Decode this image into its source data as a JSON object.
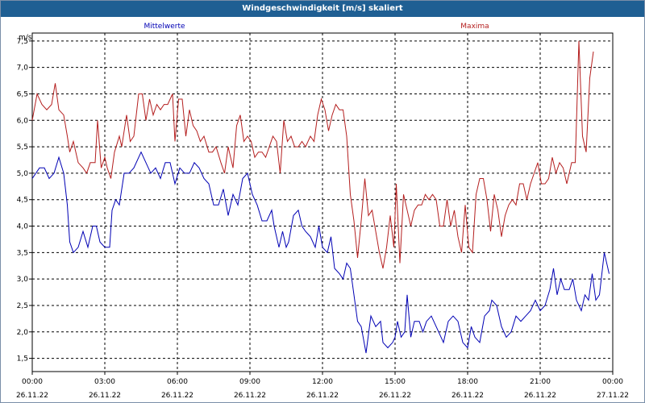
{
  "window": {
    "title": "Windgeschwindigkeit [m/s] skaliert"
  },
  "chart_data": {
    "type": "line",
    "unit": "m/s",
    "ylim": [
      1.25,
      7.65
    ],
    "yticks": [
      "1,5",
      "2,0",
      "2,5",
      "3,0",
      "3,5",
      "4,0",
      "4,5",
      "5,0",
      "5,5",
      "6,0",
      "6,5",
      "7,0",
      "7,5"
    ],
    "ytick_values": [
      1.5,
      2.0,
      2.5,
      3.0,
      3.5,
      4.0,
      4.5,
      5.0,
      5.5,
      6.0,
      6.5,
      7.0,
      7.5
    ],
    "xlim": [
      0,
      24
    ],
    "xticks": [
      {
        "time": "00:00",
        "date": "26.11.22",
        "hour": 0
      },
      {
        "time": "03:00",
        "date": "26.11.22",
        "hour": 3
      },
      {
        "time": "06:00",
        "date": "26.11.22",
        "hour": 6
      },
      {
        "time": "09:00",
        "date": "26.11.22",
        "hour": 9
      },
      {
        "time": "12:00",
        "date": "26.11.22",
        "hour": 12
      },
      {
        "time": "15:00",
        "date": "26.11.22",
        "hour": 15
      },
      {
        "time": "18:00",
        "date": "26.11.22",
        "hour": 18
      },
      {
        "time": "21:00",
        "date": "26.11.22",
        "hour": 21
      },
      {
        "time": "00:00",
        "date": "27.11.22",
        "hour": 24
      }
    ],
    "grid": true,
    "legend_placement": "top",
    "series": [
      {
        "name": "Mittelwerte",
        "color": "#0000b4",
        "points": [
          [
            0.0,
            4.9
          ],
          [
            0.3,
            5.1
          ],
          [
            0.5,
            5.1
          ],
          [
            0.7,
            4.9
          ],
          [
            0.9,
            5.0
          ],
          [
            1.1,
            5.3
          ],
          [
            1.3,
            5.0
          ],
          [
            1.45,
            4.4
          ],
          [
            1.55,
            3.7
          ],
          [
            1.7,
            3.5
          ],
          [
            1.9,
            3.6
          ],
          [
            2.1,
            3.9
          ],
          [
            2.3,
            3.6
          ],
          [
            2.5,
            4.0
          ],
          [
            2.65,
            4.0
          ],
          [
            2.8,
            3.7
          ],
          [
            3.0,
            3.6
          ],
          [
            3.2,
            3.6
          ],
          [
            3.3,
            4.3
          ],
          [
            3.45,
            4.5
          ],
          [
            3.6,
            4.4
          ],
          [
            3.8,
            5.0
          ],
          [
            4.0,
            5.0
          ],
          [
            4.2,
            5.1
          ],
          [
            4.5,
            5.4
          ],
          [
            4.7,
            5.2
          ],
          [
            4.9,
            5.0
          ],
          [
            5.1,
            5.1
          ],
          [
            5.3,
            4.9
          ],
          [
            5.5,
            5.2
          ],
          [
            5.7,
            5.2
          ],
          [
            5.9,
            4.8
          ],
          [
            6.1,
            5.1
          ],
          [
            6.3,
            5.0
          ],
          [
            6.5,
            5.0
          ],
          [
            6.7,
            5.2
          ],
          [
            6.9,
            5.1
          ],
          [
            7.1,
            4.9
          ],
          [
            7.3,
            4.8
          ],
          [
            7.5,
            4.4
          ],
          [
            7.7,
            4.4
          ],
          [
            7.9,
            4.7
          ],
          [
            8.1,
            4.2
          ],
          [
            8.3,
            4.6
          ],
          [
            8.5,
            4.4
          ],
          [
            8.7,
            4.9
          ],
          [
            8.9,
            5.0
          ],
          [
            9.1,
            4.6
          ],
          [
            9.3,
            4.4
          ],
          [
            9.5,
            4.1
          ],
          [
            9.7,
            4.1
          ],
          [
            9.9,
            4.3
          ],
          [
            10.0,
            4.0
          ],
          [
            10.2,
            3.6
          ],
          [
            10.35,
            3.9
          ],
          [
            10.5,
            3.6
          ],
          [
            10.6,
            3.7
          ],
          [
            10.8,
            4.2
          ],
          [
            11.0,
            4.3
          ],
          [
            11.15,
            4.0
          ],
          [
            11.3,
            3.9
          ],
          [
            11.5,
            3.8
          ],
          [
            11.7,
            3.6
          ],
          [
            11.85,
            4.0
          ],
          [
            12.0,
            3.6
          ],
          [
            12.2,
            3.5
          ],
          [
            12.35,
            3.8
          ],
          [
            12.5,
            3.2
          ],
          [
            12.7,
            3.1
          ],
          [
            12.85,
            3.0
          ],
          [
            13.0,
            3.3
          ],
          [
            13.15,
            3.2
          ],
          [
            13.3,
            2.7
          ],
          [
            13.45,
            2.2
          ],
          [
            13.6,
            2.1
          ],
          [
            13.8,
            1.6
          ],
          [
            14.0,
            2.3
          ],
          [
            14.2,
            2.1
          ],
          [
            14.4,
            2.2
          ],
          [
            14.5,
            1.8
          ],
          [
            14.7,
            1.7
          ],
          [
            14.9,
            1.8
          ],
          [
            15.0,
            1.9
          ],
          [
            15.1,
            2.2
          ],
          [
            15.25,
            1.9
          ],
          [
            15.4,
            2.0
          ],
          [
            15.5,
            2.7
          ],
          [
            15.65,
            1.9
          ],
          [
            15.8,
            2.2
          ],
          [
            16.0,
            2.2
          ],
          [
            16.15,
            2.0
          ],
          [
            16.3,
            2.2
          ],
          [
            16.5,
            2.3
          ],
          [
            16.7,
            2.1
          ],
          [
            16.9,
            1.9
          ],
          [
            17.0,
            1.8
          ],
          [
            17.2,
            2.2
          ],
          [
            17.4,
            2.3
          ],
          [
            17.6,
            2.2
          ],
          [
            17.8,
            1.8
          ],
          [
            18.0,
            1.7
          ],
          [
            18.15,
            2.1
          ],
          [
            18.3,
            1.9
          ],
          [
            18.5,
            1.8
          ],
          [
            18.7,
            2.3
          ],
          [
            18.9,
            2.4
          ],
          [
            19.0,
            2.6
          ],
          [
            19.2,
            2.5
          ],
          [
            19.4,
            2.1
          ],
          [
            19.6,
            1.9
          ],
          [
            19.8,
            2.0
          ],
          [
            20.0,
            2.3
          ],
          [
            20.2,
            2.2
          ],
          [
            20.4,
            2.3
          ],
          [
            20.6,
            2.4
          ],
          [
            20.8,
            2.6
          ],
          [
            21.0,
            2.4
          ],
          [
            21.2,
            2.5
          ],
          [
            21.4,
            2.8
          ],
          [
            21.55,
            3.2
          ],
          [
            21.7,
            2.7
          ],
          [
            21.85,
            3.0
          ],
          [
            22.0,
            2.8
          ],
          [
            22.2,
            2.8
          ],
          [
            22.35,
            3.0
          ],
          [
            22.5,
            2.6
          ],
          [
            22.7,
            2.4
          ],
          [
            22.85,
            2.7
          ],
          [
            23.0,
            2.6
          ],
          [
            23.15,
            3.1
          ],
          [
            23.3,
            2.6
          ],
          [
            23.45,
            2.7
          ],
          [
            23.65,
            3.5
          ],
          [
            23.85,
            3.1
          ]
        ]
      },
      {
        "name": "Maxima",
        "color": "#b41e1e",
        "points": [
          [
            0.0,
            6.0
          ],
          [
            0.2,
            6.5
          ],
          [
            0.4,
            6.3
          ],
          [
            0.6,
            6.2
          ],
          [
            0.8,
            6.3
          ],
          [
            0.95,
            6.7
          ],
          [
            1.1,
            6.2
          ],
          [
            1.3,
            6.1
          ],
          [
            1.45,
            5.7
          ],
          [
            1.55,
            5.4
          ],
          [
            1.7,
            5.6
          ],
          [
            1.9,
            5.2
          ],
          [
            2.1,
            5.1
          ],
          [
            2.25,
            5.0
          ],
          [
            2.4,
            5.2
          ],
          [
            2.6,
            5.2
          ],
          [
            2.7,
            6.0
          ],
          [
            2.85,
            5.1
          ],
          [
            3.0,
            5.3
          ],
          [
            3.1,
            5.1
          ],
          [
            3.25,
            4.9
          ],
          [
            3.4,
            5.4
          ],
          [
            3.6,
            5.7
          ],
          [
            3.7,
            5.5
          ],
          [
            3.9,
            6.1
          ],
          [
            4.05,
            5.6
          ],
          [
            4.2,
            5.7
          ],
          [
            4.4,
            6.5
          ],
          [
            4.55,
            6.5
          ],
          [
            4.7,
            6.0
          ],
          [
            4.85,
            6.4
          ],
          [
            5.0,
            6.1
          ],
          [
            5.15,
            6.3
          ],
          [
            5.3,
            6.2
          ],
          [
            5.45,
            6.3
          ],
          [
            5.6,
            6.3
          ],
          [
            5.8,
            6.5
          ],
          [
            5.9,
            5.6
          ],
          [
            6.05,
            6.4
          ],
          [
            6.2,
            6.4
          ],
          [
            6.35,
            5.7
          ],
          [
            6.5,
            6.2
          ],
          [
            6.65,
            5.9
          ],
          [
            6.8,
            5.8
          ],
          [
            6.95,
            5.6
          ],
          [
            7.1,
            5.7
          ],
          [
            7.3,
            5.4
          ],
          [
            7.45,
            5.4
          ],
          [
            7.6,
            5.5
          ],
          [
            7.8,
            5.2
          ],
          [
            7.95,
            5.0
          ],
          [
            8.1,
            5.5
          ],
          [
            8.3,
            5.1
          ],
          [
            8.45,
            5.9
          ],
          [
            8.6,
            6.1
          ],
          [
            8.75,
            5.6
          ],
          [
            8.9,
            5.7
          ],
          [
            9.05,
            5.6
          ],
          [
            9.2,
            5.3
          ],
          [
            9.35,
            5.4
          ],
          [
            9.5,
            5.4
          ],
          [
            9.65,
            5.3
          ],
          [
            9.8,
            5.5
          ],
          [
            9.95,
            5.7
          ],
          [
            10.1,
            5.6
          ],
          [
            10.25,
            5.0
          ],
          [
            10.4,
            6.0
          ],
          [
            10.55,
            5.6
          ],
          [
            10.7,
            5.7
          ],
          [
            10.85,
            5.5
          ],
          [
            11.0,
            5.5
          ],
          [
            11.15,
            5.6
          ],
          [
            11.3,
            5.5
          ],
          [
            11.5,
            5.7
          ],
          [
            11.65,
            5.6
          ],
          [
            11.8,
            6.1
          ],
          [
            11.95,
            6.4
          ],
          [
            12.1,
            6.2
          ],
          [
            12.25,
            5.8
          ],
          [
            12.4,
            6.1
          ],
          [
            12.55,
            6.3
          ],
          [
            12.7,
            6.2
          ],
          [
            12.85,
            6.2
          ],
          [
            13.0,
            5.7
          ],
          [
            13.15,
            4.6
          ],
          [
            13.3,
            4.1
          ],
          [
            13.45,
            3.4
          ],
          [
            13.6,
            4.1
          ],
          [
            13.75,
            4.9
          ],
          [
            13.9,
            4.2
          ],
          [
            14.05,
            4.3
          ],
          [
            14.2,
            3.9
          ],
          [
            14.35,
            3.5
          ],
          [
            14.5,
            3.2
          ],
          [
            14.65,
            3.6
          ],
          [
            14.8,
            4.2
          ],
          [
            14.95,
            3.6
          ],
          [
            15.05,
            4.8
          ],
          [
            15.2,
            3.3
          ],
          [
            15.35,
            4.6
          ],
          [
            15.5,
            4.3
          ],
          [
            15.65,
            4.0
          ],
          [
            15.8,
            4.3
          ],
          [
            15.95,
            4.4
          ],
          [
            16.1,
            4.4
          ],
          [
            16.25,
            4.6
          ],
          [
            16.4,
            4.5
          ],
          [
            16.55,
            4.6
          ],
          [
            16.7,
            4.5
          ],
          [
            16.85,
            4.0
          ],
          [
            17.0,
            4.0
          ],
          [
            17.15,
            4.5
          ],
          [
            17.3,
            4.0
          ],
          [
            17.45,
            4.3
          ],
          [
            17.6,
            3.8
          ],
          [
            17.75,
            3.5
          ],
          [
            17.9,
            4.4
          ],
          [
            18.05,
            3.6
          ],
          [
            18.2,
            3.5
          ],
          [
            18.35,
            4.6
          ],
          [
            18.5,
            4.9
          ],
          [
            18.65,
            4.9
          ],
          [
            18.8,
            4.5
          ],
          [
            18.95,
            3.9
          ],
          [
            19.1,
            4.6
          ],
          [
            19.25,
            4.3
          ],
          [
            19.4,
            3.8
          ],
          [
            19.55,
            4.2
          ],
          [
            19.7,
            4.4
          ],
          [
            19.85,
            4.5
          ],
          [
            20.0,
            4.4
          ],
          [
            20.15,
            4.8
          ],
          [
            20.3,
            4.8
          ],
          [
            20.45,
            4.5
          ],
          [
            20.6,
            4.8
          ],
          [
            20.75,
            5.0
          ],
          [
            20.9,
            5.2
          ],
          [
            21.05,
            4.8
          ],
          [
            21.2,
            4.8
          ],
          [
            21.35,
            4.9
          ],
          [
            21.5,
            5.3
          ],
          [
            21.65,
            5.0
          ],
          [
            21.8,
            5.2
          ],
          [
            21.95,
            5.1
          ],
          [
            22.1,
            4.8
          ],
          [
            22.3,
            5.2
          ],
          [
            22.45,
            5.2
          ],
          [
            22.6,
            7.5
          ],
          [
            22.75,
            5.7
          ],
          [
            22.9,
            5.4
          ],
          [
            23.05,
            6.8
          ],
          [
            23.2,
            7.3
          ]
        ]
      }
    ]
  }
}
